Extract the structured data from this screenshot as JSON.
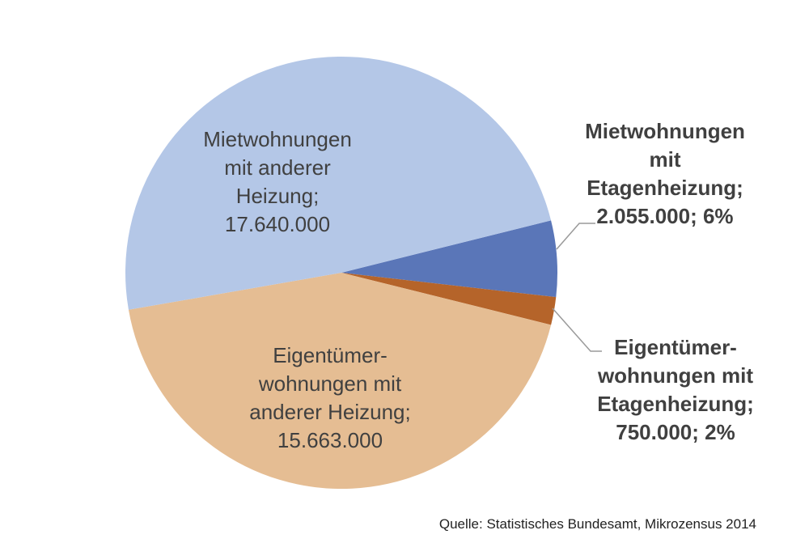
{
  "chart_data": {
    "type": "pie",
    "title": "",
    "slices": [
      {
        "label_lines": [
          "Mietwohnungen",
          "mit",
          "Etagenheizung;",
          "2.055.000; 6%"
        ],
        "value": 2055000,
        "color": "#5a76b8",
        "label_position": "outside-right"
      },
      {
        "label_lines": [
          "Eigentümer-",
          "wohnungen mit",
          "Etagenheizung;",
          "750.000; 2%"
        ],
        "value": 750000,
        "color": "#b5642a",
        "label_position": "outside-right"
      },
      {
        "label_lines": [
          "Eigentümer-",
          "wohnungen mit",
          "anderer Heizung;",
          "15.663.000"
        ],
        "value": 15663000,
        "color": "#e5bd93",
        "label_position": "inside"
      },
      {
        "label_lines": [
          "Mietwohnungen",
          "mit anderer",
          "Heizung;",
          "17.640.000"
        ],
        "value": 17640000,
        "color": "#b4c7e7",
        "label_position": "inside"
      }
    ],
    "source": "Quelle: Statistisches Bundesamt, Mikrozensus 2014",
    "legend": "none"
  }
}
